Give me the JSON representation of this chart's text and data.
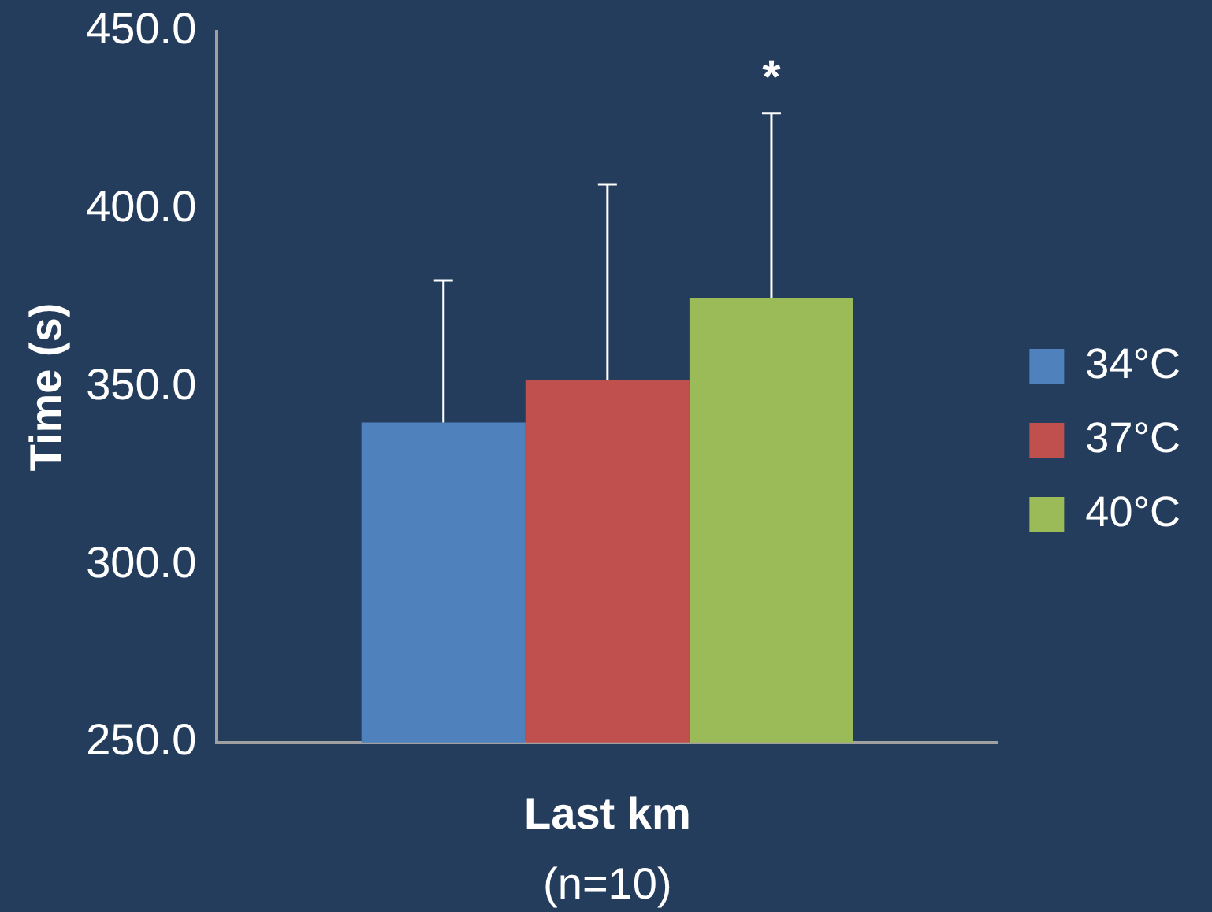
{
  "chart_data": {
    "type": "bar",
    "ylabel": "Time (s)",
    "xlabel": "Last km",
    "categories": [
      null
    ],
    "series": [
      {
        "name": "34°C",
        "color": "#4f81bd",
        "values": [
          340
        ],
        "errors": [
          [
            340,
            380
          ]
        ]
      },
      {
        "name": "37°C",
        "color": "#c0504d",
        "values": [
          352
        ],
        "errors": [
          [
            352,
            407
          ]
        ]
      },
      {
        "name": "40°C",
        "color": "#9bbb59",
        "values": [
          375
        ],
        "errors": [
          [
            375,
            427
          ]
        ]
      }
    ],
    "ylim": [
      250,
      450
    ],
    "yticks": [
      {
        "value": 250,
        "label": "250.0"
      },
      {
        "value": 300,
        "label": "300.0"
      },
      {
        "value": 350,
        "label": "350.0"
      },
      {
        "value": 400,
        "label": "400.0"
      },
      {
        "value": 450,
        "label": "450.0"
      }
    ],
    "annotations": [
      "*",
      "(n=10)"
    ],
    "grid": false,
    "legend": "right"
  }
}
